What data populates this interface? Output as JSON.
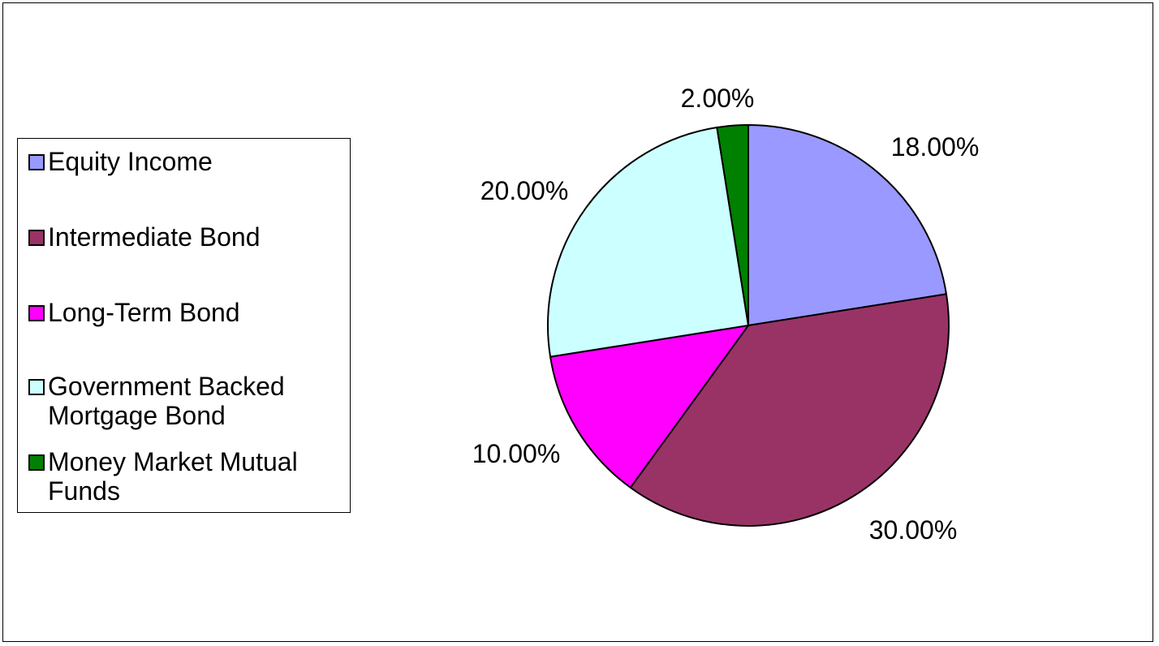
{
  "colors": {
    "equity_income": "#9999ff",
    "intermediate_bond": "#993366",
    "long_term_bond": "#ff00ff",
    "gov_backed_mortgage": "#ccffff",
    "money_market": "#008000"
  },
  "chart_data": {
    "type": "pie",
    "title": "",
    "legend_placement": "left",
    "slices": [
      {
        "name": "Equity Income",
        "value": 18.0,
        "label": "18.00%",
        "color": "#9999ff"
      },
      {
        "name": "Intermediate Bond",
        "value": 30.0,
        "label": "30.00%",
        "color": "#993366"
      },
      {
        "name": "Long-Term Bond",
        "value": 10.0,
        "label": "10.00%",
        "color": "#ff00ff"
      },
      {
        "name": "Government Backed Mortgage Bond",
        "value": 20.0,
        "label": "20.00%",
        "color": "#ccffff"
      },
      {
        "name": "Money Market Mutual Funds",
        "value": 2.0,
        "label": "2.00%",
        "color": "#008000"
      }
    ]
  }
}
